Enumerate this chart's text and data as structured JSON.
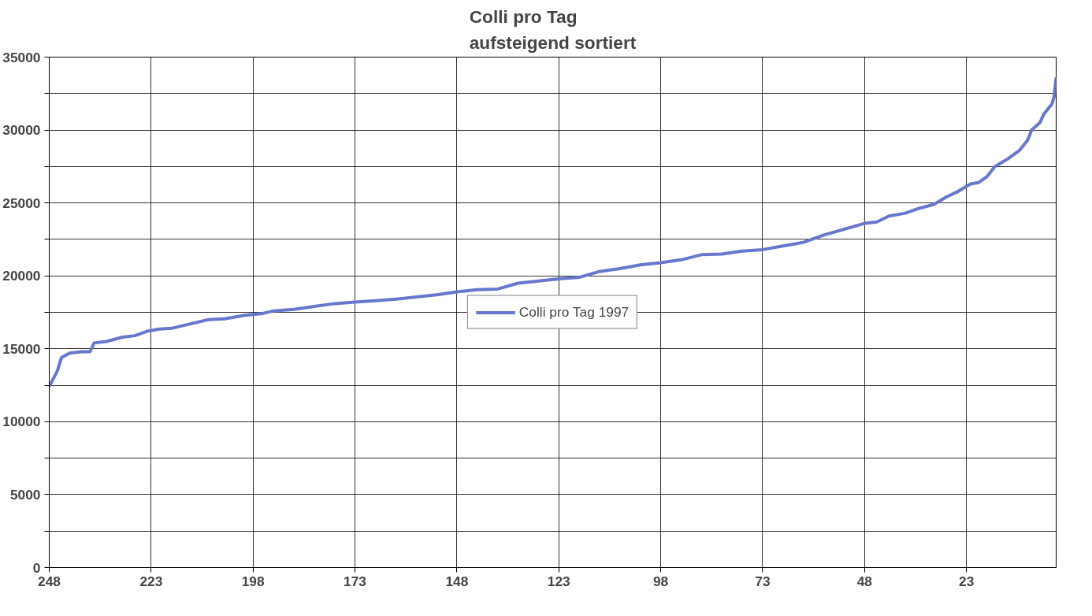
{
  "chart_data": {
    "type": "line",
    "title": "Colli pro Tag\naufsteigend sortiert",
    "x": [
      248,
      246,
      245,
      243,
      240,
      238,
      237,
      234,
      230,
      227,
      224,
      221,
      218,
      215,
      212,
      209,
      205,
      200,
      196,
      193,
      188,
      183,
      178,
      173,
      168,
      163,
      158,
      153,
      148,
      143,
      138,
      133,
      128,
      123,
      118,
      113,
      108,
      103,
      98,
      93,
      88,
      83,
      78,
      73,
      68,
      63,
      58,
      53,
      48,
      45,
      42,
      38,
      35,
      31,
      28,
      25,
      22,
      20,
      18,
      16,
      13,
      10,
      8,
      7,
      5,
      4,
      2,
      1.5,
      1
    ],
    "series": [
      {
        "name": "Colli pro Tag 1997",
        "color": "#6677cc",
        "values": [
          12400,
          13500,
          14400,
          14700,
          14800,
          14800,
          15400,
          15500,
          15800,
          15900,
          16200,
          16350,
          16400,
          16600,
          16800,
          17000,
          17050,
          17300,
          17400,
          17600,
          17700,
          17900,
          18100,
          18200,
          18300,
          18400,
          18550,
          18700,
          18900,
          19050,
          19100,
          19500,
          19650,
          19800,
          19900,
          20300,
          20500,
          20750,
          20900,
          21100,
          21450,
          21500,
          21700,
          21800,
          22050,
          22300,
          22800,
          23200,
          23600,
          23700,
          24100,
          24300,
          24600,
          24900,
          25400,
          25800,
          26300,
          26400,
          26800,
          27500,
          28000,
          28600,
          29300,
          30000,
          30500,
          31100,
          31800,
          32300,
          33600
        ]
      }
    ],
    "xlim": [
      248,
      1
    ],
    "xticks": [
      248,
      223,
      198,
      173,
      148,
      123,
      98,
      73,
      48,
      23
    ],
    "ylim": [
      0,
      35000
    ],
    "yticks": [
      0,
      {
        "value": 2500,
        "label": null
      },
      5000,
      {
        "value": 7500,
        "label": null
      },
      10000,
      {
        "value": 12500,
        "label": null
      },
      15000,
      {
        "value": 17500,
        "label": null
      },
      20000,
      {
        "value": 22500,
        "label": null
      },
      25000,
      {
        "value": 27500,
        "label": null
      },
      30000,
      {
        "value": 32500,
        "label": null
      },
      35000
    ],
    "grid": true,
    "legend": "center",
    "marker": "none",
    "line_style": "solid"
  }
}
